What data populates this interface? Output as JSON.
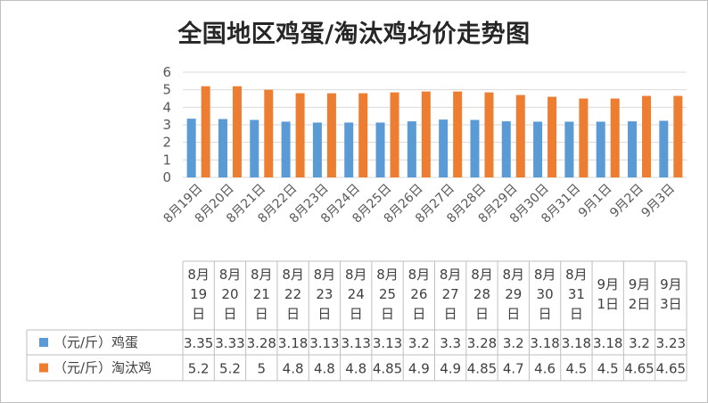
{
  "chart_data": {
    "type": "bar",
    "title": "全国地区鸡蛋/淘汰鸡均价走势图",
    "categories": [
      "8月19日",
      "8月20日",
      "8月21日",
      "8月22日",
      "8月23日",
      "8月24日",
      "8月25日",
      "8月26日",
      "8月27日",
      "8月28日",
      "8月29日",
      "8月30日",
      "8月31日",
      "9月1日",
      "9月2日",
      "9月3日"
    ],
    "series": [
      {
        "name": "（元/斤）鸡蛋",
        "color": "#5B9BD5",
        "values": [
          3.35,
          3.33,
          3.28,
          3.18,
          3.13,
          3.13,
          3.13,
          3.2,
          3.3,
          3.28,
          3.2,
          3.18,
          3.18,
          3.18,
          3.2,
          3.23
        ],
        "labels": [
          "3.35",
          "3.33",
          "3.28",
          "3.18",
          "3.13",
          "3.13",
          "3.13",
          "3.2",
          "3.3",
          "3.28",
          "3.2",
          "3.18",
          "3.18",
          "3.18",
          "3.2",
          "3.23"
        ]
      },
      {
        "name": "（元/斤）淘汰鸡",
        "color": "#ED7D31",
        "values": [
          5.2,
          5.2,
          5,
          4.8,
          4.8,
          4.8,
          4.85,
          4.9,
          4.9,
          4.85,
          4.7,
          4.6,
          4.5,
          4.5,
          4.65,
          4.65
        ],
        "labels": [
          "5.2",
          "5.2",
          "5",
          "4.8",
          "4.8",
          "4.8",
          "4.85",
          "4.9",
          "4.9",
          "4.85",
          "4.7",
          "4.6",
          "4.5",
          "4.5",
          "4.65",
          "4.65"
        ]
      }
    ],
    "ylim": [
      0,
      6
    ],
    "yticks": [
      "0",
      "1",
      "2",
      "3",
      "4",
      "5",
      "6"
    ],
    "grid": true,
    "legend": "data-table",
    "table_headers": [
      [
        "8月",
        "19",
        "日"
      ],
      [
        "8月",
        "20",
        "日"
      ],
      [
        "8月",
        "21",
        "日"
      ],
      [
        "8月",
        "22",
        "日"
      ],
      [
        "8月",
        "23",
        "日"
      ],
      [
        "8月",
        "24",
        "日"
      ],
      [
        "8月",
        "25",
        "日"
      ],
      [
        "8月",
        "26",
        "日"
      ],
      [
        "8月",
        "27",
        "日"
      ],
      [
        "8月",
        "28",
        "日"
      ],
      [
        "8月",
        "29",
        "日"
      ],
      [
        "8月",
        "30",
        "日"
      ],
      [
        "8月",
        "31",
        "日"
      ],
      [
        "9月",
        "1日"
      ],
      [
        "9月",
        "2日"
      ],
      [
        "9月",
        "3日"
      ]
    ]
  }
}
